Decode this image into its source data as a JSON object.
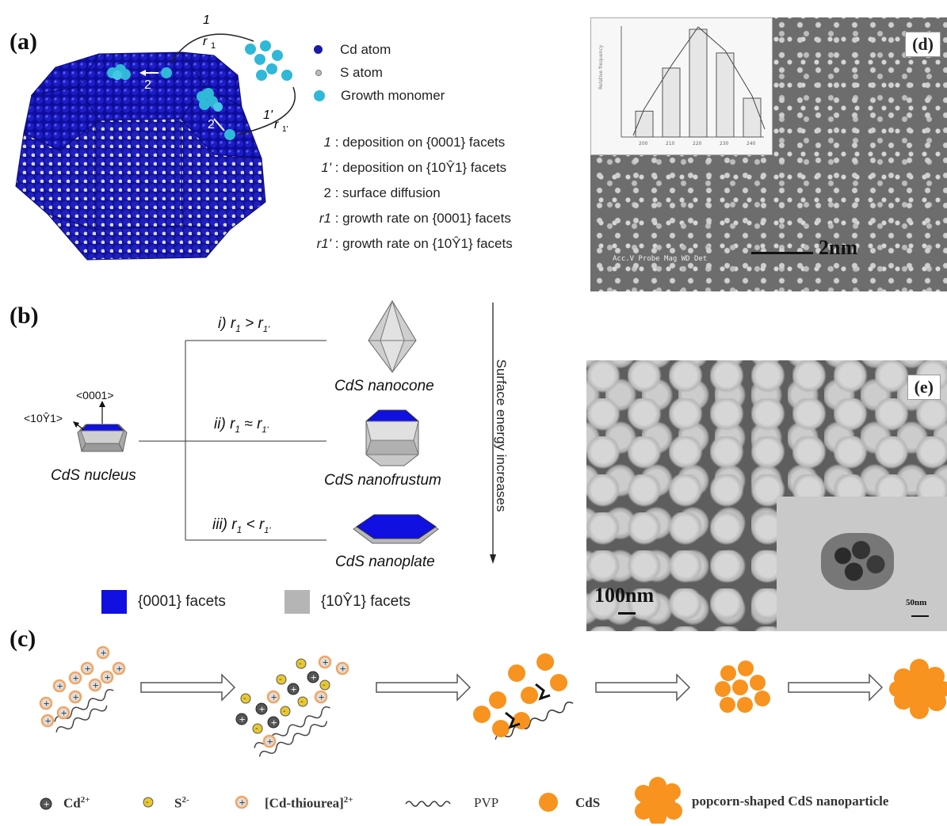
{
  "panels": {
    "a": "(a)",
    "b": "(b)",
    "c": "(c)",
    "d": "(d)",
    "e": "(e)"
  },
  "panel_a": {
    "legend": [
      {
        "label": "Cd atom",
        "color": "#1a1aa8"
      },
      {
        "label": "S atom",
        "color": "#bdbdbd"
      },
      {
        "label": "Growth monomer",
        "color": "#2fb8d8"
      }
    ],
    "definitions": [
      {
        "key": "1",
        "text": "deposition on {0001} facets"
      },
      {
        "key": "1'",
        "text": "deposition on {10Ŷ1} facets"
      },
      {
        "key": "2",
        "text": "surface diffusion"
      },
      {
        "key": "r1",
        "text": "growth rate on {0001} facets"
      },
      {
        "key": "r1'",
        "text": "growth rate on {10Ŷ1} facets"
      }
    ],
    "arrow_labels": {
      "one": "1",
      "r1": "r",
      "two_top": "2",
      "one_prime": "1'",
      "r1_prime": "r",
      "two_side": "2"
    }
  },
  "panel_b": {
    "nucleus_label": "CdS  nucleus",
    "dir_0001": "<0001>",
    "dir_1011": "<10Ŷ1>",
    "conditions": [
      {
        "roman": "i)",
        "relation": ">"
      },
      {
        "roman": "ii)",
        "relation": "≈"
      },
      {
        "roman": "iii)",
        "relation": "<"
      }
    ],
    "shapes": [
      "CdS nanocone",
      "CdS nanofrustum",
      "CdS nanoplate"
    ],
    "energy_label": "Surface energy increases",
    "facet_legend": [
      {
        "label": "{0001} facets",
        "color": "#1010e0"
      },
      {
        "label": "{10Ŷ1} facets",
        "color": "#b5b5b5"
      }
    ]
  },
  "panel_c": {
    "legend": [
      {
        "label": "Cd",
        "sup": "2+"
      },
      {
        "label": "S",
        "sup": "2-"
      },
      {
        "label": "[Cd-thiourea]",
        "sup": "2+"
      },
      {
        "label": "PVP",
        "sup": ""
      },
      {
        "label": "CdS",
        "sup": ""
      },
      {
        "label": "popcorn-shaped CdS nanoparticle",
        "sup": ""
      }
    ],
    "colors": {
      "cdS": "#f7931e",
      "cd_ion": "#4a4a4a",
      "s_ion": "#e8c830",
      "complex": "#f4a460"
    }
  },
  "panel_d": {
    "scale_bar": "2nm",
    "info": "Acc.V  Probe  Mag  WD  Det",
    "histogram": {
      "values": [
        24,
        64,
        100,
        78,
        36
      ],
      "categories": [
        "200",
        "210",
        "220",
        "230",
        "240"
      ]
    }
  },
  "panel_e": {
    "scale_bar": "100nm",
    "inset_scale_bar": "50nm"
  }
}
